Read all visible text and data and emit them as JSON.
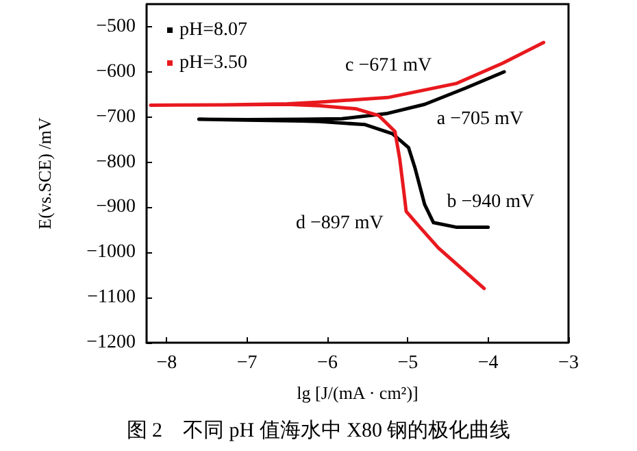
{
  "chart_data": {
    "type": "line",
    "title": "图 2　不同 pH 值海水中 X80 钢的极化曲线",
    "xlabel": "lg [J/(mA · cm²)]",
    "ylabel": "E(vs.SCE) /mV",
    "xlim": [
      -8.25,
      -3
    ],
    "xticks": [
      -8,
      -7,
      -6,
      -5,
      -4,
      -3
    ],
    "ylim": [
      -1200,
      -450
    ],
    "yticks": [
      -1200,
      -1100,
      -1000,
      -900,
      -800,
      -700,
      -600,
      -500
    ],
    "grid": false,
    "legend": "top left",
    "marker": "none",
    "line_style": "solid",
    "series": [
      {
        "name": "pH=8.07",
        "color": "#000000",
        "x": [
          -4.0,
          -4.4,
          -4.68,
          -4.79,
          -4.91,
          -4.99,
          -5.19,
          -5.53,
          -6.1,
          -6.33,
          -7.0,
          -7.6,
          -7.0,
          -6.33,
          -5.82,
          -5.25,
          -4.79,
          -4.28,
          -3.8
        ],
        "values": [
          -944,
          -944,
          -934,
          -894,
          -813,
          -768,
          -737,
          -717,
          -710,
          -709,
          -707,
          -705,
          -706,
          -705,
          -704,
          -692,
          -672,
          -636,
          -600
        ]
      },
      {
        "name": "pH=3.50",
        "color": "#e8191e",
        "x": [
          -4.05,
          -4.62,
          -4.85,
          -5.02,
          -5.05,
          -5.1,
          -5.16,
          -5.36,
          -5.64,
          -6.1,
          -6.5,
          -7.3,
          -8.2,
          -7.3,
          -6.5,
          -6.1,
          -5.25,
          -4.4,
          -3.82,
          -3.31
        ],
        "values": [
          -1080,
          -990,
          -944,
          -909,
          -864,
          -793,
          -732,
          -697,
          -682,
          -675,
          -672,
          -673,
          -674,
          -673,
          -671,
          -667,
          -657,
          -626,
          -581,
          -535
        ]
      }
    ],
    "annotations": [
      {
        "text": "c −671 mV",
        "x": -5.25,
        "y": -671
      },
      {
        "text": "a −705 mV",
        "x": -5.2,
        "y": -705
      },
      {
        "text": "b −940 mV",
        "x": -4.7,
        "y": -940
      },
      {
        "text": "d −897 mV",
        "x": -5.03,
        "y": -897
      }
    ]
  }
}
